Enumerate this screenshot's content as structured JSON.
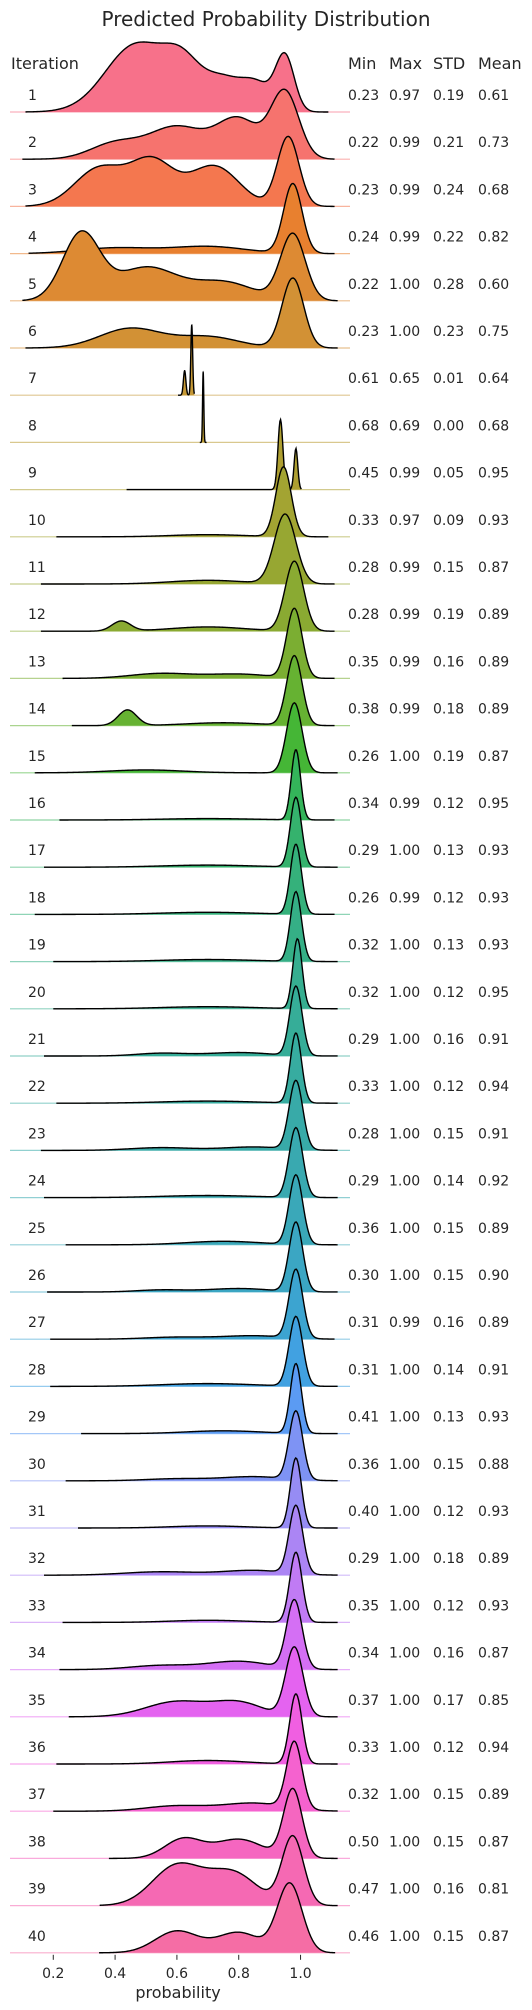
{
  "chart_data": {
    "type": "ridgeline",
    "title": "Predicted Probability Distribution",
    "xlabel": "probability",
    "row_header": "Iteration",
    "stat_headers": [
      "Min",
      "Max",
      "STD",
      "Mean"
    ],
    "xlim": [
      0.06,
      1.16
    ],
    "xticks": [
      "0.2",
      "0.4",
      "0.6",
      "0.8",
      "1.0"
    ],
    "xtick_values": [
      0.2,
      0.4,
      0.6,
      0.8,
      1.0
    ],
    "grid": false,
    "series": [
      {
        "iteration": "1",
        "min": "0.23",
        "max": "0.97",
        "std": "0.19",
        "mean": "0.61",
        "color": "#f7718a"
      },
      {
        "iteration": "2",
        "min": "0.22",
        "max": "0.99",
        "std": "0.21",
        "mean": "0.73",
        "color": "#f6736e"
      },
      {
        "iteration": "3",
        "min": "0.23",
        "max": "0.99",
        "std": "0.24",
        "mean": "0.68",
        "color": "#f4774f"
      },
      {
        "iteration": "4",
        "min": "0.24",
        "max": "0.99",
        "std": "0.22",
        "mean": "0.82",
        "color": "#e8802f"
      },
      {
        "iteration": "5",
        "min": "0.22",
        "max": "1.00",
        "std": "0.28",
        "mean": "0.60",
        "color": "#dd8a33"
      },
      {
        "iteration": "6",
        "min": "0.23",
        "max": "1.00",
        "std": "0.23",
        "mean": "0.75",
        "color": "#d29135"
      },
      {
        "iteration": "7",
        "min": "0.61",
        "max": "0.65",
        "std": "0.01",
        "mean": "0.64",
        "color": "#c69936"
      },
      {
        "iteration": "8",
        "min": "0.68",
        "max": "0.69",
        "std": "0.00",
        "mean": "0.68",
        "color": "#bb9c33"
      },
      {
        "iteration": "9",
        "min": "0.45",
        "max": "0.99",
        "std": "0.05",
        "mean": "0.95",
        "color": "#ae9f31"
      },
      {
        "iteration": "10",
        "min": "0.33",
        "max": "0.97",
        "std": "0.09",
        "mean": "0.93",
        "color": "#a3a432"
      },
      {
        "iteration": "11",
        "min": "0.28",
        "max": "0.99",
        "std": "0.15",
        "mean": "0.87",
        "color": "#97a732"
      },
      {
        "iteration": "12",
        "min": "0.28",
        "max": "0.99",
        "std": "0.19",
        "mean": "0.89",
        "color": "#8aaa32"
      },
      {
        "iteration": "13",
        "min": "0.35",
        "max": "0.99",
        "std": "0.16",
        "mean": "0.89",
        "color": "#7bae32"
      },
      {
        "iteration": "14",
        "min": "0.38",
        "max": "0.99",
        "std": "0.18",
        "mean": "0.89",
        "color": "#66b232"
      },
      {
        "iteration": "15",
        "min": "0.26",
        "max": "1.00",
        "std": "0.19",
        "mean": "0.87",
        "color": "#45b636"
      },
      {
        "iteration": "16",
        "min": "0.34",
        "max": "0.99",
        "std": "0.12",
        "mean": "0.95",
        "color": "#34b45a"
      },
      {
        "iteration": "17",
        "min": "0.29",
        "max": "1.00",
        "std": "0.13",
        "mean": "0.93",
        "color": "#35b26d"
      },
      {
        "iteration": "18",
        "min": "0.26",
        "max": "0.99",
        "std": "0.12",
        "mean": "0.93",
        "color": "#35b17b"
      },
      {
        "iteration": "19",
        "min": "0.32",
        "max": "1.00",
        "std": "0.13",
        "mean": "0.93",
        "color": "#35af86"
      },
      {
        "iteration": "20",
        "min": "0.32",
        "max": "1.00",
        "std": "0.12",
        "mean": "0.95",
        "color": "#36ae90"
      },
      {
        "iteration": "21",
        "min": "0.29",
        "max": "1.00",
        "std": "0.16",
        "mean": "0.91",
        "color": "#36ad98"
      },
      {
        "iteration": "22",
        "min": "0.33",
        "max": "1.00",
        "std": "0.12",
        "mean": "0.94",
        "color": "#37aca0"
      },
      {
        "iteration": "23",
        "min": "0.28",
        "max": "1.00",
        "std": "0.15",
        "mean": "0.91",
        "color": "#38aaa8"
      },
      {
        "iteration": "24",
        "min": "0.29",
        "max": "1.00",
        "std": "0.14",
        "mean": "0.92",
        "color": "#39a9b0"
      },
      {
        "iteration": "25",
        "min": "0.36",
        "max": "1.00",
        "std": "0.15",
        "mean": "0.89",
        "color": "#3aa8b9"
      },
      {
        "iteration": "26",
        "min": "0.30",
        "max": "1.00",
        "std": "0.15",
        "mean": "0.90",
        "color": "#3ba6c3"
      },
      {
        "iteration": "27",
        "min": "0.31",
        "max": "0.99",
        "std": "0.16",
        "mean": "0.89",
        "color": "#3ca4d0"
      },
      {
        "iteration": "28",
        "min": "0.31",
        "max": "1.00",
        "std": "0.14",
        "mean": "0.91",
        "color": "#41a1e1"
      },
      {
        "iteration": "29",
        "min": "0.41",
        "max": "1.00",
        "std": "0.13",
        "mean": "0.93",
        "color": "#5b9bf3"
      },
      {
        "iteration": "30",
        "min": "0.36",
        "max": "1.00",
        "std": "0.15",
        "mean": "0.88",
        "color": "#7e93f4"
      },
      {
        "iteration": "31",
        "min": "0.40",
        "max": "1.00",
        "std": "0.12",
        "mean": "0.93",
        "color": "#968cf4"
      },
      {
        "iteration": "32",
        "min": "0.29",
        "max": "1.00",
        "std": "0.18",
        "mean": "0.89",
        "color": "#ab85f4"
      },
      {
        "iteration": "33",
        "min": "0.35",
        "max": "1.00",
        "std": "0.12",
        "mean": "0.93",
        "color": "#c07bf4"
      },
      {
        "iteration": "34",
        "min": "0.34",
        "max": "1.00",
        "std": "0.16",
        "mean": "0.87",
        "color": "#d46ff4"
      },
      {
        "iteration": "35",
        "min": "0.37",
        "max": "1.00",
        "std": "0.17",
        "mean": "0.85",
        "color": "#e463f0"
      },
      {
        "iteration": "36",
        "min": "0.33",
        "max": "1.00",
        "std": "0.12",
        "mean": "0.94",
        "color": "#f05fe1"
      },
      {
        "iteration": "37",
        "min": "0.32",
        "max": "1.00",
        "std": "0.15",
        "mean": "0.89",
        "color": "#f562cf"
      },
      {
        "iteration": "38",
        "min": "0.50",
        "max": "1.00",
        "std": "0.15",
        "mean": "0.87",
        "color": "#f566c0"
      },
      {
        "iteration": "39",
        "min": "0.47",
        "max": "1.00",
        "std": "0.16",
        "mean": "0.81",
        "color": "#f569b3"
      },
      {
        "iteration": "40",
        "min": "0.46",
        "max": "1.00",
        "std": "0.15",
        "mean": "0.87",
        "color": "#f56da5"
      }
    ],
    "densities": [
      {
        "bumps": [
          [
            0.47,
            0.1,
            0.78
          ],
          [
            0.62,
            0.06,
            0.45
          ],
          [
            0.75,
            0.06,
            0.35
          ],
          [
            0.86,
            0.05,
            0.3
          ],
          [
            0.95,
            0.03,
            0.62
          ]
        ]
      },
      {
        "bumps": [
          [
            0.4,
            0.08,
            0.22
          ],
          [
            0.6,
            0.09,
            0.45
          ],
          [
            0.8,
            0.07,
            0.55
          ],
          [
            0.95,
            0.045,
            0.92
          ]
        ]
      },
      {
        "bumps": [
          [
            0.35,
            0.08,
            0.52
          ],
          [
            0.52,
            0.07,
            0.6
          ],
          [
            0.72,
            0.08,
            0.55
          ],
          [
            0.96,
            0.035,
            0.95
          ]
        ]
      },
      {
        "bumps": [
          [
            0.4,
            0.12,
            0.08
          ],
          [
            0.7,
            0.12,
            0.1
          ],
          [
            0.975,
            0.03,
            0.98
          ]
        ]
      },
      {
        "bumps": [
          [
            0.29,
            0.06,
            1.0
          ],
          [
            0.5,
            0.1,
            0.5
          ],
          [
            0.75,
            0.1,
            0.28
          ],
          [
            0.975,
            0.04,
            1.0
          ]
        ]
      },
      {
        "bumps": [
          [
            0.45,
            0.1,
            0.28
          ],
          [
            0.7,
            0.1,
            0.16
          ],
          [
            0.975,
            0.035,
            1.0
          ]
        ]
      },
      {
        "bumps": [
          [
            0.625,
            0.004,
            0.35
          ],
          [
            0.648,
            0.003,
            1.0
          ]
        ]
      },
      {
        "bumps": [
          [
            0.685,
            0.002,
            1.0
          ]
        ]
      },
      {
        "bumps": [
          [
            0.935,
            0.008,
            0.85
          ],
          [
            0.985,
            0.006,
            0.5
          ]
        ]
      },
      {
        "bumps": [
          [
            0.7,
            0.12,
            0.03
          ],
          [
            0.945,
            0.025,
            0.98
          ]
        ]
      },
      {
        "bumps": [
          [
            0.7,
            0.12,
            0.05
          ],
          [
            0.95,
            0.035,
            0.95
          ]
        ]
      },
      {
        "bumps": [
          [
            0.42,
            0.03,
            0.14
          ],
          [
            0.7,
            0.12,
            0.06
          ],
          [
            0.98,
            0.03,
            0.98
          ]
        ]
      },
      {
        "bumps": [
          [
            0.55,
            0.1,
            0.07
          ],
          [
            0.8,
            0.1,
            0.06
          ],
          [
            0.98,
            0.025,
            0.98
          ]
        ]
      },
      {
        "bumps": [
          [
            0.44,
            0.03,
            0.22
          ],
          [
            0.75,
            0.12,
            0.04
          ],
          [
            0.98,
            0.025,
            0.98
          ]
        ]
      },
      {
        "bumps": [
          [
            0.5,
            0.12,
            0.04
          ],
          [
            0.98,
            0.025,
            0.98
          ]
        ]
      },
      {
        "bumps": [
          [
            0.7,
            0.15,
            0.02
          ],
          [
            0.985,
            0.015,
            1.0
          ]
        ]
      },
      {
        "bumps": [
          [
            0.7,
            0.15,
            0.03
          ],
          [
            0.985,
            0.018,
            1.0
          ]
        ]
      },
      {
        "bumps": [
          [
            0.7,
            0.15,
            0.03
          ],
          [
            0.985,
            0.018,
            1.0
          ]
        ]
      },
      {
        "bumps": [
          [
            0.7,
            0.15,
            0.03
          ],
          [
            0.985,
            0.018,
            1.0
          ]
        ]
      },
      {
        "bumps": [
          [
            0.7,
            0.15,
            0.03
          ],
          [
            0.99,
            0.015,
            1.0
          ]
        ]
      },
      {
        "bumps": [
          [
            0.55,
            0.08,
            0.04
          ],
          [
            0.8,
            0.1,
            0.05
          ],
          [
            0.985,
            0.02,
            1.0
          ]
        ]
      },
      {
        "bumps": [
          [
            0.7,
            0.15,
            0.03
          ],
          [
            0.985,
            0.018,
            1.0
          ]
        ]
      },
      {
        "bumps": [
          [
            0.55,
            0.1,
            0.04
          ],
          [
            0.85,
            0.1,
            0.05
          ],
          [
            0.985,
            0.022,
            1.0
          ]
        ]
      },
      {
        "bumps": [
          [
            0.7,
            0.15,
            0.03
          ],
          [
            0.985,
            0.022,
            1.0
          ]
        ]
      },
      {
        "bumps": [
          [
            0.75,
            0.12,
            0.05
          ],
          [
            0.985,
            0.022,
            1.0
          ]
        ]
      },
      {
        "bumps": [
          [
            0.55,
            0.08,
            0.03
          ],
          [
            0.8,
            0.1,
            0.05
          ],
          [
            0.985,
            0.022,
            1.0
          ]
        ]
      },
      {
        "bumps": [
          [
            0.6,
            0.1,
            0.03
          ],
          [
            0.85,
            0.1,
            0.05
          ],
          [
            0.985,
            0.022,
            1.0
          ]
        ]
      },
      {
        "bumps": [
          [
            0.7,
            0.15,
            0.04
          ],
          [
            0.985,
            0.022,
            1.0
          ]
        ]
      },
      {
        "bumps": [
          [
            0.75,
            0.12,
            0.04
          ],
          [
            0.985,
            0.018,
            1.0
          ]
        ]
      },
      {
        "bumps": [
          [
            0.6,
            0.1,
            0.03
          ],
          [
            0.85,
            0.1,
            0.06
          ],
          [
            0.985,
            0.022,
            1.0
          ]
        ]
      },
      {
        "bumps": [
          [
            0.7,
            0.12,
            0.03
          ],
          [
            0.985,
            0.018,
            1.0
          ]
        ]
      },
      {
        "bumps": [
          [
            0.55,
            0.12,
            0.05
          ],
          [
            0.85,
            0.1,
            0.07
          ],
          [
            0.985,
            0.022,
            1.0
          ]
        ]
      },
      {
        "bumps": [
          [
            0.7,
            0.12,
            0.03
          ],
          [
            0.985,
            0.02,
            1.0
          ]
        ]
      },
      {
        "bumps": [
          [
            0.55,
            0.1,
            0.06
          ],
          [
            0.8,
            0.1,
            0.12
          ],
          [
            0.98,
            0.025,
            1.0
          ]
        ]
      },
      {
        "bumps": [
          [
            0.6,
            0.1,
            0.22
          ],
          [
            0.8,
            0.08,
            0.2
          ],
          [
            0.98,
            0.028,
            1.0
          ]
        ]
      },
      {
        "bumps": [
          [
            0.7,
            0.12,
            0.05
          ],
          [
            0.985,
            0.02,
            1.0
          ]
        ]
      },
      {
        "bumps": [
          [
            0.6,
            0.1,
            0.08
          ],
          [
            0.85,
            0.1,
            0.12
          ],
          [
            0.98,
            0.025,
            1.0
          ]
        ]
      },
      {
        "bumps": [
          [
            0.62,
            0.06,
            0.28
          ],
          [
            0.8,
            0.08,
            0.28
          ],
          [
            0.975,
            0.03,
            1.0
          ]
        ]
      },
      {
        "bumps": [
          [
            0.6,
            0.08,
            0.55
          ],
          [
            0.78,
            0.08,
            0.45
          ],
          [
            0.975,
            0.035,
            0.95
          ]
        ]
      },
      {
        "bumps": [
          [
            0.6,
            0.07,
            0.3
          ],
          [
            0.8,
            0.07,
            0.28
          ],
          [
            0.965,
            0.04,
            0.95
          ]
        ]
      }
    ]
  }
}
